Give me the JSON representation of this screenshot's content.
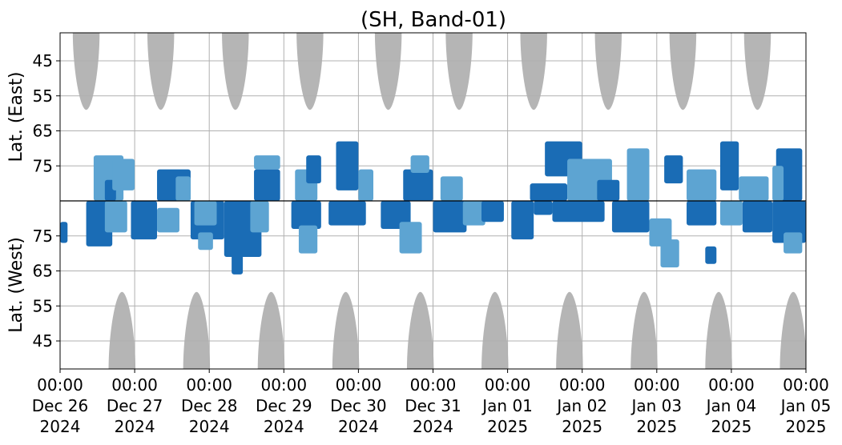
{
  "chart_data": {
    "type": "heatmap",
    "title": "(SH, Band-01)",
    "ylabel_top": "Lat. (East)",
    "ylabel_bottom": "Lat. (West)",
    "y_axis": {
      "hemispheres": [
        "East",
        "West"
      ],
      "center_lat": 85,
      "edge_lat": 37,
      "tick_values": [
        45,
        55,
        65,
        75
      ],
      "top_tick_labels": [
        "45",
        "55",
        "65",
        "75"
      ],
      "bottom_tick_labels": [
        "75",
        "65",
        "55",
        "45"
      ]
    },
    "x_axis": {
      "range": [
        "2024-12-26 00:00",
        "2025-01-05 00:00"
      ],
      "ticks": [
        {
          "l1": "00:00",
          "l2": "Dec 26",
          "l3": "2024"
        },
        {
          "l1": "00:00",
          "l2": "Dec 27",
          "l3": "2024"
        },
        {
          "l1": "00:00",
          "l2": "Dec 28",
          "l3": "2024"
        },
        {
          "l1": "00:00",
          "l2": "Dec 29",
          "l3": "2024"
        },
        {
          "l1": "00:00",
          "l2": "Dec 30",
          "l3": "2024"
        },
        {
          "l1": "00:00",
          "l2": "Dec 31",
          "l3": "2024"
        },
        {
          "l1": "00:00",
          "l2": "Jan 01",
          "l3": "2025"
        },
        {
          "l1": "00:00",
          "l2": "Jan 02",
          "l3": "2025"
        },
        {
          "l1": "00:00",
          "l2": "Jan 03",
          "l3": "2025"
        },
        {
          "l1": "00:00",
          "l2": "Jan 04",
          "l3": "2025"
        },
        {
          "l1": "00:00",
          "l2": "Jan 05",
          "l3": "2025"
        }
      ]
    },
    "grid": true,
    "colors": {
      "strong": "#1a6cb5",
      "weak": "#5da4d2",
      "no_coverage": "#b5b5b5",
      "grid": "#b0b0b0",
      "center_line": "#000000"
    },
    "no_coverage_regions": [
      {
        "hemisphere": "East",
        "center_day": 0.35,
        "half_width_days": 0.18,
        "extends_to_lat": 59
      },
      {
        "hemisphere": "East",
        "center_day": 1.35,
        "half_width_days": 0.18,
        "extends_to_lat": 59
      },
      {
        "hemisphere": "East",
        "center_day": 2.35,
        "half_width_days": 0.18,
        "extends_to_lat": 59
      },
      {
        "hemisphere": "East",
        "center_day": 3.35,
        "half_width_days": 0.18,
        "extends_to_lat": 59
      },
      {
        "hemisphere": "East",
        "center_day": 4.4,
        "half_width_days": 0.18,
        "extends_to_lat": 59
      },
      {
        "hemisphere": "East",
        "center_day": 5.35,
        "half_width_days": 0.18,
        "extends_to_lat": 59
      },
      {
        "hemisphere": "East",
        "center_day": 6.35,
        "half_width_days": 0.18,
        "extends_to_lat": 59
      },
      {
        "hemisphere": "East",
        "center_day": 7.35,
        "half_width_days": 0.18,
        "extends_to_lat": 59
      },
      {
        "hemisphere": "East",
        "center_day": 8.35,
        "half_width_days": 0.18,
        "extends_to_lat": 59
      },
      {
        "hemisphere": "East",
        "center_day": 9.35,
        "half_width_days": 0.18,
        "extends_to_lat": 59
      },
      {
        "hemisphere": "West",
        "center_day": 0.83,
        "half_width_days": 0.18,
        "extends_to_lat": 59
      },
      {
        "hemisphere": "West",
        "center_day": 1.83,
        "half_width_days": 0.18,
        "extends_to_lat": 59
      },
      {
        "hemisphere": "West",
        "center_day": 2.83,
        "half_width_days": 0.18,
        "extends_to_lat": 59
      },
      {
        "hemisphere": "West",
        "center_day": 3.83,
        "half_width_days": 0.18,
        "extends_to_lat": 59
      },
      {
        "hemisphere": "West",
        "center_day": 4.83,
        "half_width_days": 0.18,
        "extends_to_lat": 59
      },
      {
        "hemisphere": "West",
        "center_day": 5.83,
        "half_width_days": 0.18,
        "extends_to_lat": 59
      },
      {
        "hemisphere": "West",
        "center_day": 6.83,
        "half_width_days": 0.18,
        "extends_to_lat": 59
      },
      {
        "hemisphere": "West",
        "center_day": 7.83,
        "half_width_days": 0.18,
        "extends_to_lat": 59
      },
      {
        "hemisphere": "West",
        "center_day": 8.83,
        "half_width_days": 0.18,
        "extends_to_lat": 59
      },
      {
        "hemisphere": "West",
        "center_day": 9.83,
        "half_width_days": 0.18,
        "extends_to_lat": 59
      }
    ],
    "activity_patches": [
      {
        "hemisphere": "East",
        "day_start": 0.45,
        "day_end": 0.85,
        "lat_low": 72,
        "lat_high": 85,
        "level": "weak"
      },
      {
        "hemisphere": "East",
        "day_start": 0.6,
        "day_end": 0.75,
        "lat_low": 79,
        "lat_high": 85,
        "level": "strong"
      },
      {
        "hemisphere": "East",
        "day_start": 0.7,
        "day_end": 1.0,
        "lat_low": 73,
        "lat_high": 82,
        "level": "weak"
      },
      {
        "hemisphere": "East",
        "day_start": 1.3,
        "day_end": 1.75,
        "lat_low": 76,
        "lat_high": 85,
        "level": "strong"
      },
      {
        "hemisphere": "East",
        "day_start": 1.55,
        "day_end": 1.75,
        "lat_low": 78,
        "lat_high": 85,
        "level": "weak"
      },
      {
        "hemisphere": "East",
        "day_start": 2.6,
        "day_end": 2.95,
        "lat_low": 76,
        "lat_high": 85,
        "level": "strong"
      },
      {
        "hemisphere": "East",
        "day_start": 2.6,
        "day_end": 2.95,
        "lat_low": 72,
        "lat_high": 76,
        "level": "weak"
      },
      {
        "hemisphere": "East",
        "day_start": 3.15,
        "day_end": 3.45,
        "lat_low": 76,
        "lat_high": 85,
        "level": "weak"
      },
      {
        "hemisphere": "East",
        "day_start": 3.3,
        "day_end": 3.5,
        "lat_low": 72,
        "lat_high": 80,
        "level": "strong"
      },
      {
        "hemisphere": "East",
        "day_start": 3.7,
        "day_end": 4.0,
        "lat_low": 68,
        "lat_high": 82,
        "level": "strong"
      },
      {
        "hemisphere": "East",
        "day_start": 4.0,
        "day_end": 4.2,
        "lat_low": 76,
        "lat_high": 85,
        "level": "weak"
      },
      {
        "hemisphere": "East",
        "day_start": 4.6,
        "day_end": 5.0,
        "lat_low": 76,
        "lat_high": 85,
        "level": "strong"
      },
      {
        "hemisphere": "East",
        "day_start": 4.7,
        "day_end": 4.95,
        "lat_low": 72,
        "lat_high": 77,
        "level": "weak"
      },
      {
        "hemisphere": "East",
        "day_start": 5.1,
        "day_end": 5.4,
        "lat_low": 78,
        "lat_high": 85,
        "level": "weak"
      },
      {
        "hemisphere": "East",
        "day_start": 6.3,
        "day_end": 6.8,
        "lat_low": 80,
        "lat_high": 85,
        "level": "strong"
      },
      {
        "hemisphere": "East",
        "day_start": 6.5,
        "day_end": 7.0,
        "lat_low": 68,
        "lat_high": 78,
        "level": "strong"
      },
      {
        "hemisphere": "East",
        "day_start": 6.8,
        "day_end": 7.4,
        "lat_low": 73,
        "lat_high": 85,
        "level": "weak"
      },
      {
        "hemisphere": "East",
        "day_start": 7.2,
        "day_end": 7.5,
        "lat_low": 79,
        "lat_high": 85,
        "level": "strong"
      },
      {
        "hemisphere": "East",
        "day_start": 7.6,
        "day_end": 7.9,
        "lat_low": 70,
        "lat_high": 85,
        "level": "weak"
      },
      {
        "hemisphere": "East",
        "day_start": 8.1,
        "day_end": 8.35,
        "lat_low": 72,
        "lat_high": 80,
        "level": "strong"
      },
      {
        "hemisphere": "East",
        "day_start": 8.4,
        "day_end": 8.8,
        "lat_low": 76,
        "lat_high": 85,
        "level": "weak"
      },
      {
        "hemisphere": "East",
        "day_start": 8.85,
        "day_end": 9.1,
        "lat_low": 68,
        "lat_high": 82,
        "level": "strong"
      },
      {
        "hemisphere": "East",
        "day_start": 9.1,
        "day_end": 9.5,
        "lat_low": 78,
        "lat_high": 85,
        "level": "weak"
      },
      {
        "hemisphere": "East",
        "day_start": 9.6,
        "day_end": 9.95,
        "lat_low": 70,
        "lat_high": 85,
        "level": "strong"
      },
      {
        "hemisphere": "East",
        "day_start": 9.55,
        "day_end": 9.7,
        "lat_low": 75,
        "lat_high": 85,
        "level": "weak"
      },
      {
        "hemisphere": "West",
        "day_start": 0.0,
        "day_end": 0.1,
        "lat_low": 73,
        "lat_high": 79,
        "level": "strong"
      },
      {
        "hemisphere": "West",
        "day_start": 0.35,
        "day_end": 0.7,
        "lat_low": 72,
        "lat_high": 85,
        "level": "strong"
      },
      {
        "hemisphere": "West",
        "day_start": 0.6,
        "day_end": 0.9,
        "lat_low": 76,
        "lat_high": 85,
        "level": "weak"
      },
      {
        "hemisphere": "West",
        "day_start": 0.95,
        "day_end": 1.3,
        "lat_low": 74,
        "lat_high": 85,
        "level": "strong"
      },
      {
        "hemisphere": "West",
        "day_start": 1.3,
        "day_end": 1.6,
        "lat_low": 76,
        "lat_high": 83,
        "level": "weak"
      },
      {
        "hemisphere": "West",
        "day_start": 1.75,
        "day_end": 2.2,
        "lat_low": 74,
        "lat_high": 85,
        "level": "strong"
      },
      {
        "hemisphere": "West",
        "day_start": 1.8,
        "day_end": 2.1,
        "lat_low": 78,
        "lat_high": 85,
        "level": "weak"
      },
      {
        "hemisphere": "West",
        "day_start": 1.85,
        "day_end": 2.05,
        "lat_low": 71,
        "lat_high": 76,
        "level": "weak"
      },
      {
        "hemisphere": "West",
        "day_start": 2.2,
        "day_end": 2.7,
        "lat_low": 69,
        "lat_high": 85,
        "level": "strong"
      },
      {
        "hemisphere": "West",
        "day_start": 2.3,
        "day_end": 2.45,
        "lat_low": 64,
        "lat_high": 70,
        "level": "strong"
      },
      {
        "hemisphere": "West",
        "day_start": 2.55,
        "day_end": 2.8,
        "lat_low": 76,
        "lat_high": 85,
        "level": "weak"
      },
      {
        "hemisphere": "West",
        "day_start": 3.1,
        "day_end": 3.5,
        "lat_low": 77,
        "lat_high": 85,
        "level": "strong"
      },
      {
        "hemisphere": "West",
        "day_start": 3.2,
        "day_end": 3.45,
        "lat_low": 70,
        "lat_high": 78,
        "level": "weak"
      },
      {
        "hemisphere": "West",
        "day_start": 3.6,
        "day_end": 4.1,
        "lat_low": 78,
        "lat_high": 85,
        "level": "strong"
      },
      {
        "hemisphere": "West",
        "day_start": 4.3,
        "day_end": 4.7,
        "lat_low": 77,
        "lat_high": 85,
        "level": "strong"
      },
      {
        "hemisphere": "West",
        "day_start": 4.55,
        "day_end": 4.85,
        "lat_low": 70,
        "lat_high": 79,
        "level": "weak"
      },
      {
        "hemisphere": "West",
        "day_start": 5.0,
        "day_end": 5.45,
        "lat_low": 76,
        "lat_high": 85,
        "level": "strong"
      },
      {
        "hemisphere": "West",
        "day_start": 5.4,
        "day_end": 5.7,
        "lat_low": 78,
        "lat_high": 85,
        "level": "weak"
      },
      {
        "hemisphere": "West",
        "day_start": 5.65,
        "day_end": 5.95,
        "lat_low": 79,
        "lat_high": 85,
        "level": "strong"
      },
      {
        "hemisphere": "West",
        "day_start": 6.05,
        "day_end": 6.35,
        "lat_low": 74,
        "lat_high": 85,
        "level": "strong"
      },
      {
        "hemisphere": "West",
        "day_start": 6.35,
        "day_end": 6.6,
        "lat_low": 81,
        "lat_high": 85,
        "level": "strong"
      },
      {
        "hemisphere": "West",
        "day_start": 6.6,
        "day_end": 7.3,
        "lat_low": 79,
        "lat_high": 85,
        "level": "strong"
      },
      {
        "hemisphere": "West",
        "day_start": 7.4,
        "day_end": 7.9,
        "lat_low": 76,
        "lat_high": 85,
        "level": "strong"
      },
      {
        "hemisphere": "West",
        "day_start": 7.9,
        "day_end": 8.2,
        "lat_low": 72,
        "lat_high": 80,
        "level": "weak"
      },
      {
        "hemisphere": "West",
        "day_start": 8.05,
        "day_end": 8.3,
        "lat_low": 66,
        "lat_high": 74,
        "level": "weak"
      },
      {
        "hemisphere": "West",
        "day_start": 8.4,
        "day_end": 8.8,
        "lat_low": 78,
        "lat_high": 85,
        "level": "strong"
      },
      {
        "hemisphere": "West",
        "day_start": 8.65,
        "day_end": 8.8,
        "lat_low": 67,
        "lat_high": 72,
        "level": "strong"
      },
      {
        "hemisphere": "West",
        "day_start": 8.85,
        "day_end": 9.15,
        "lat_low": 78,
        "lat_high": 85,
        "level": "weak"
      },
      {
        "hemisphere": "West",
        "day_start": 9.15,
        "day_end": 9.55,
        "lat_low": 76,
        "lat_high": 85,
        "level": "strong"
      },
      {
        "hemisphere": "West",
        "day_start": 9.55,
        "day_end": 10.0,
        "lat_low": 73,
        "lat_high": 85,
        "level": "strong"
      },
      {
        "hemisphere": "West",
        "day_start": 9.7,
        "day_end": 9.95,
        "lat_low": 70,
        "lat_high": 76,
        "level": "weak"
      }
    ]
  }
}
